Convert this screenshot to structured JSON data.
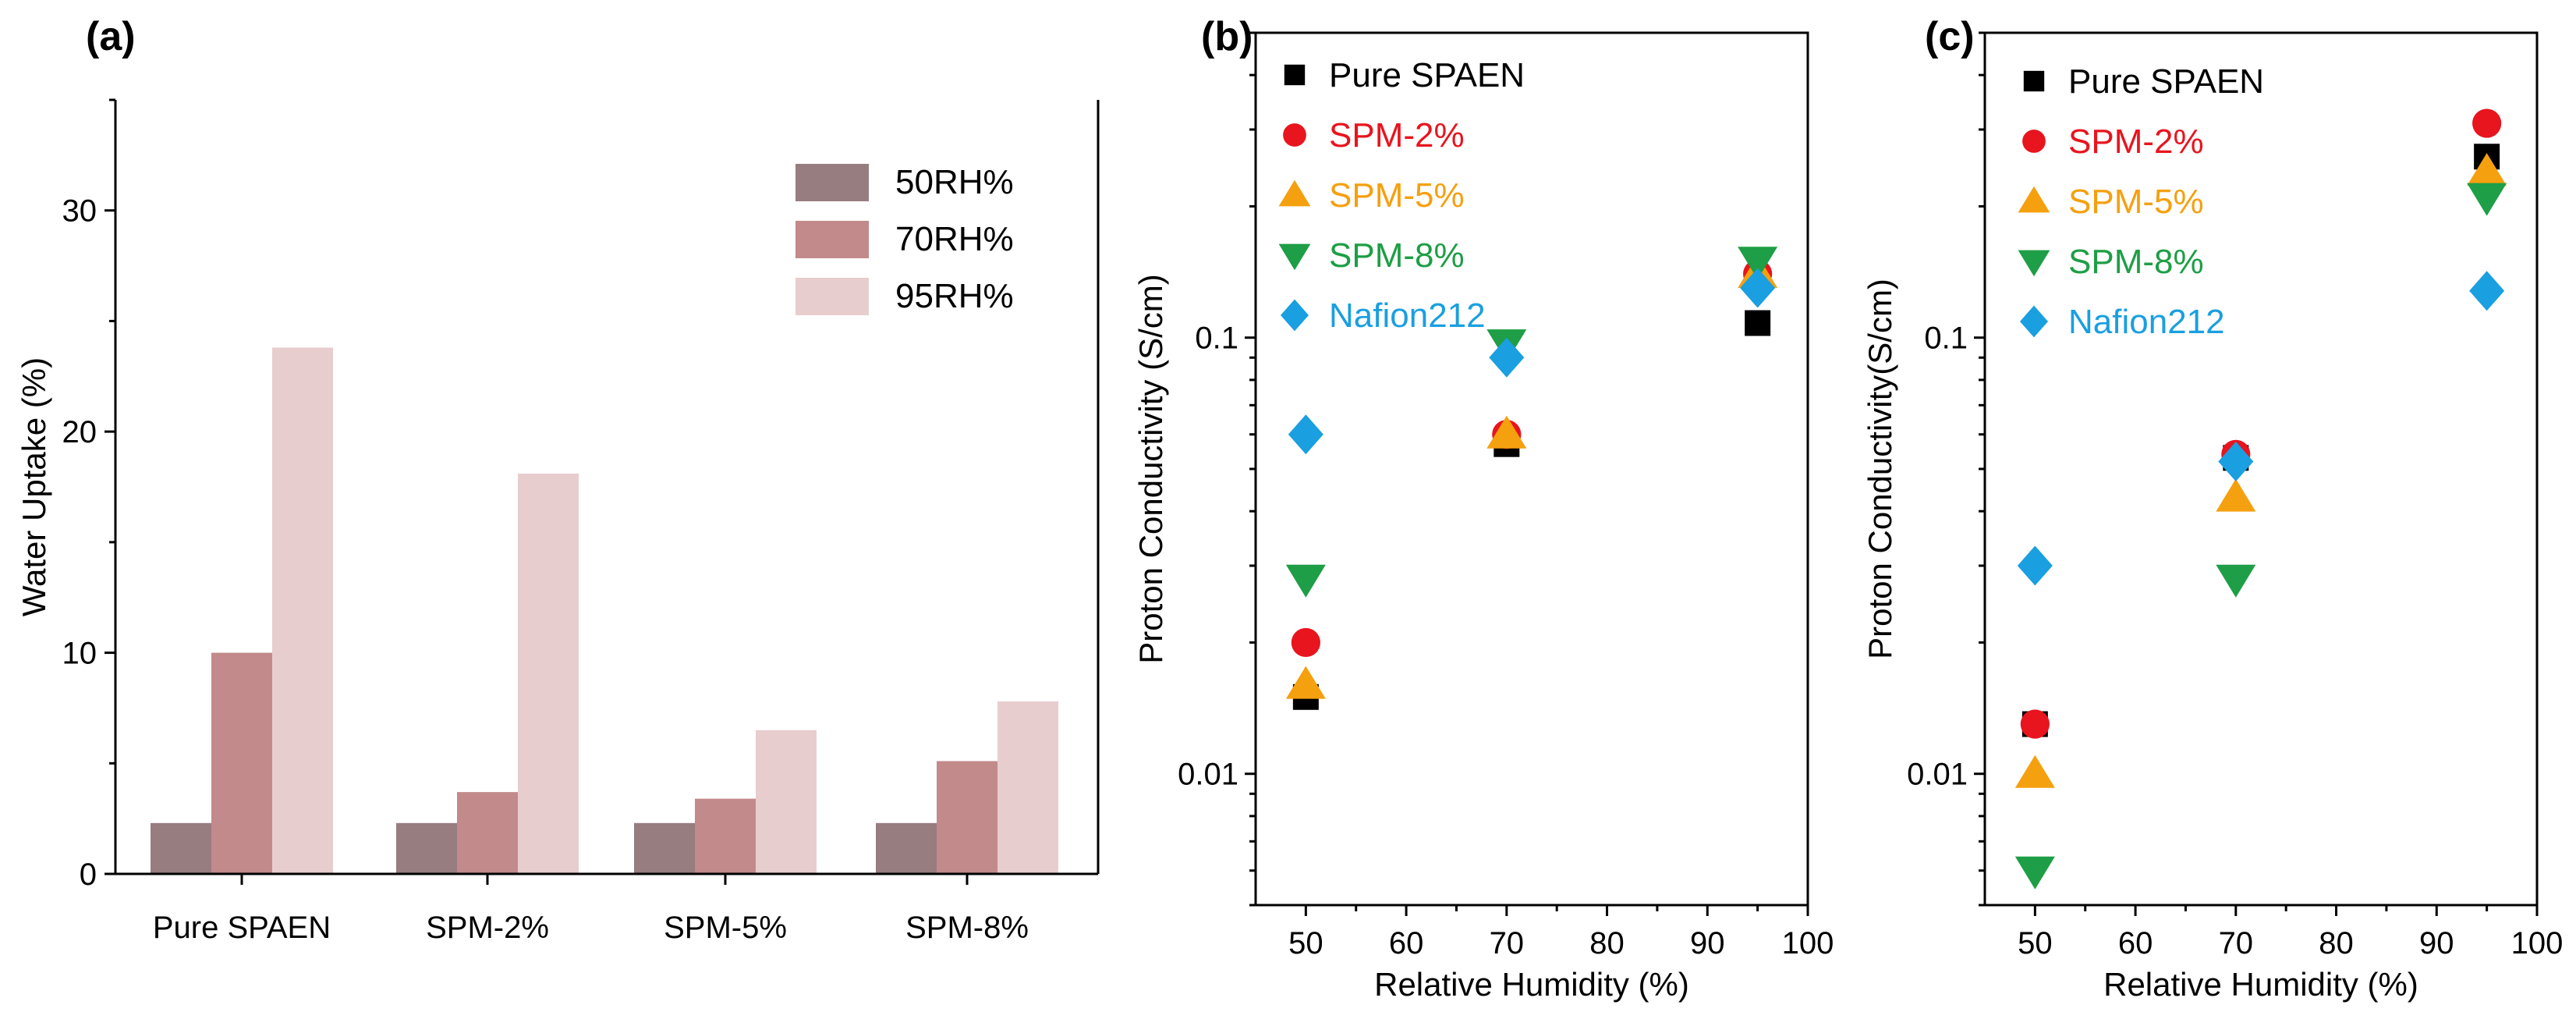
{
  "chart_data": [
    {
      "panel": "(a)",
      "type": "bar",
      "title": "",
      "xlabel": "",
      "ylabel": "Water Uptake (%)",
      "ylim": [
        0,
        35
      ],
      "yticks": [
        "0",
        "10",
        "20",
        "30"
      ],
      "categories": [
        "Pure SPAEN",
        "SPM-2%",
        "SPM-5%",
        "SPM-8%"
      ],
      "series": [
        {
          "name": "50RH%",
          "color": "#977d80",
          "values": [
            2.3,
            2.3,
            2.3,
            2.3
          ]
        },
        {
          "name": "70RH%",
          "color": "#c28a8a",
          "values": [
            10.0,
            3.7,
            3.4,
            5.1
          ]
        },
        {
          "name": "95RH%",
          "color": "#e8cdce",
          "values": [
            23.8,
            18.1,
            6.5,
            7.8
          ]
        }
      ],
      "legend": "top-right",
      "grid": false
    },
    {
      "panel": "(b)",
      "type": "scatter",
      "title": "",
      "xlabel": "Relative Humidity (%)",
      "ylabel": "Proton Conductivity (S/cm)",
      "xlim": [
        45,
        100
      ],
      "ylim": [
        0.005,
        0.5
      ],
      "yscale": "log",
      "xticks": [
        "50",
        "60",
        "70",
        "80",
        "90",
        "100"
      ],
      "yticks": [
        "0.01",
        "0.1"
      ],
      "legend": "top-left",
      "series": [
        {
          "name": "Pure SPAEN",
          "color": "#000000",
          "marker": "square",
          "points": [
            [
              50,
              0.015
            ],
            [
              70,
              0.057
            ],
            [
              95,
              0.108
            ]
          ]
        },
        {
          "name": "SPM-2%",
          "color": "#e8141e",
          "marker": "circle",
          "points": [
            [
              50,
              0.02
            ],
            [
              70,
              0.06
            ],
            [
              95,
              0.14
            ]
          ]
        },
        {
          "name": "SPM-5%",
          "color": "#f5a00f",
          "marker": "triangle-up",
          "points": [
            [
              50,
              0.016
            ],
            [
              70,
              0.06
            ],
            [
              95,
              0.14
            ]
          ]
        },
        {
          "name": "SPM-8%",
          "color": "#1e9e46",
          "marker": "triangle-down",
          "points": [
            [
              50,
              0.028
            ],
            [
              70,
              0.097
            ],
            [
              95,
              0.15
            ]
          ]
        },
        {
          "name": "Nafion212",
          "color": "#1a9fe0",
          "marker": "diamond",
          "points": [
            [
              50,
              0.06
            ],
            [
              70,
              0.09
            ],
            [
              95,
              0.13
            ]
          ]
        }
      ]
    },
    {
      "panel": "(c)",
      "type": "scatter",
      "title": "",
      "xlabel": "Relative Humidity (%)",
      "ylabel": "Proton Conductivity(S/cm)",
      "xlim": [
        45,
        100
      ],
      "ylim": [
        0.005,
        0.5
      ],
      "yscale": "log",
      "xticks": [
        "50",
        "60",
        "70",
        "80",
        "90",
        "100"
      ],
      "yticks": [
        "0.01",
        "0.1"
      ],
      "legend": "top-left",
      "series": [
        {
          "name": "Pure SPAEN",
          "color": "#000000",
          "marker": "square",
          "points": [
            [
              50,
              0.013
            ],
            [
              70,
              0.053
            ],
            [
              95,
              0.26
            ]
          ]
        },
        {
          "name": "SPM-2%",
          "color": "#e8141e",
          "marker": "circle",
          "points": [
            [
              50,
              0.013
            ],
            [
              70,
              0.054
            ],
            [
              95,
              0.31
            ]
          ]
        },
        {
          "name": "SPM-5%",
          "color": "#f5a00f",
          "marker": "triangle-up",
          "points": [
            [
              50,
              0.01
            ],
            [
              70,
              0.043
            ],
            [
              95,
              0.24
            ]
          ]
        },
        {
          "name": "SPM-8%",
          "color": "#1e9e46",
          "marker": "triangle-down",
          "points": [
            [
              50,
              0.006
            ],
            [
              70,
              0.028
            ],
            [
              95,
              0.21
            ]
          ]
        },
        {
          "name": "Nafion212",
          "color": "#1a9fe0",
          "marker": "diamond",
          "points": [
            [
              50,
              0.03
            ],
            [
              70,
              0.052
            ],
            [
              95,
              0.128
            ]
          ]
        }
      ]
    }
  ]
}
